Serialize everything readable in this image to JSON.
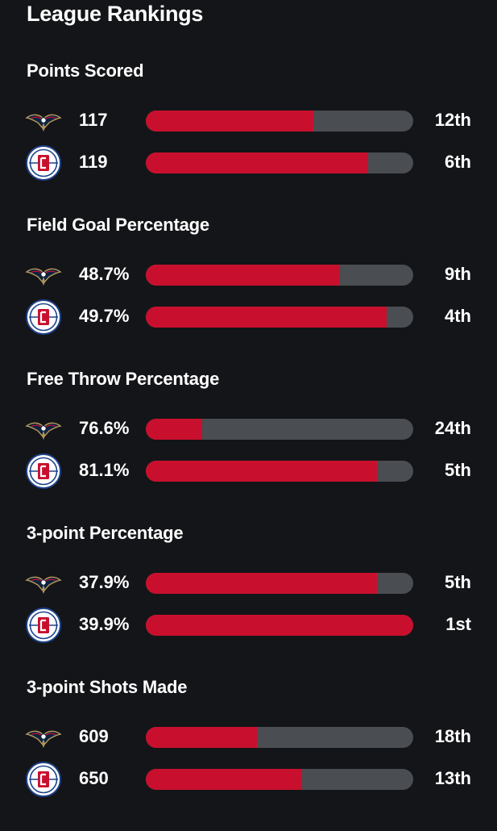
{
  "title": "League Rankings",
  "colors": {
    "background": "#141518",
    "bar_fill": "#c8102e",
    "bar_track": "#4a4d52",
    "pelicans_navy": "#0c2340",
    "pelicans_gold": "#b4975a",
    "clippers_red": "#c8102e",
    "clippers_blue": "#1d428a"
  },
  "teams": [
    {
      "id": "pelicans",
      "logo_icon": "pelicans-logo-icon"
    },
    {
      "id": "clippers",
      "logo_icon": "clippers-logo-icon"
    }
  ],
  "categories": [
    {
      "label": "Points Scored",
      "rows": [
        {
          "team": "pelicans",
          "value": "117",
          "rank": "12th",
          "fill": 0.625
        },
        {
          "team": "clippers",
          "value": "119",
          "rank": "6th",
          "fill": 0.83
        }
      ]
    },
    {
      "label": "Field Goal Percentage",
      "rows": [
        {
          "team": "pelicans",
          "value": "48.7%",
          "rank": "9th",
          "fill": 0.725
        },
        {
          "team": "clippers",
          "value": "49.7%",
          "rank": "4th",
          "fill": 0.9
        }
      ]
    },
    {
      "label": "Free Throw Percentage",
      "rows": [
        {
          "team": "pelicans",
          "value": "76.6%",
          "rank": "24th",
          "fill": 0.21
        },
        {
          "team": "clippers",
          "value": "81.1%",
          "rank": "5th",
          "fill": 0.865
        }
      ]
    },
    {
      "label": "3-point Percentage",
      "rows": [
        {
          "team": "pelicans",
          "value": "37.9%",
          "rank": "5th",
          "fill": 0.865
        },
        {
          "team": "clippers",
          "value": "39.9%",
          "rank": "1st",
          "fill": 1.0
        }
      ]
    },
    {
      "label": "3-point Shots Made",
      "rows": [
        {
          "team": "pelicans",
          "value": "609",
          "rank": "18th",
          "fill": 0.415
        },
        {
          "team": "clippers",
          "value": "650",
          "rank": "13th",
          "fill": 0.585
        }
      ]
    }
  ]
}
